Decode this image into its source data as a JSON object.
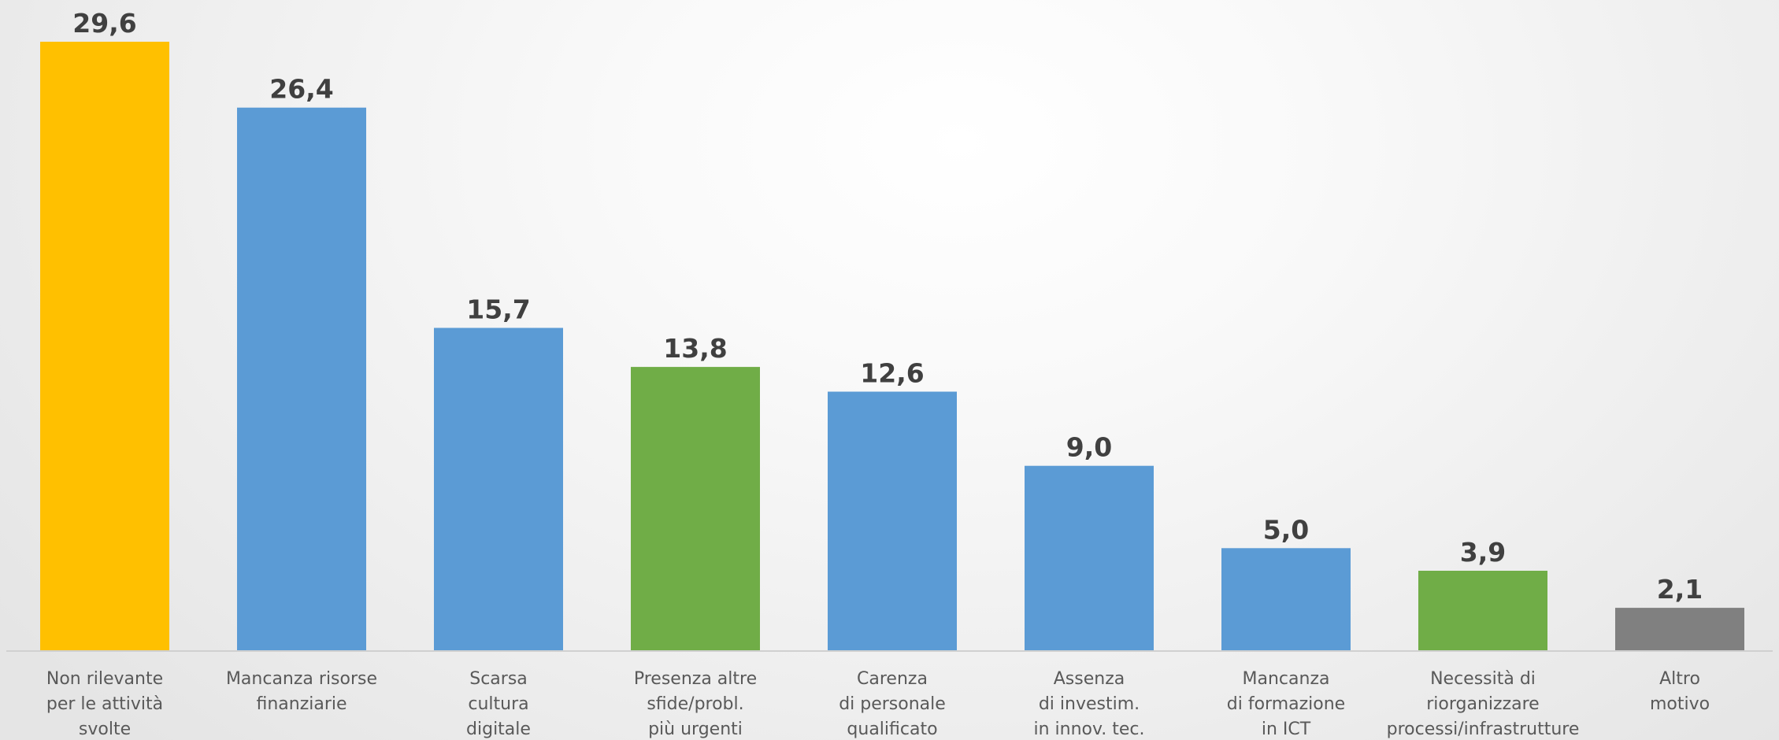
{
  "chart_data": {
    "type": "bar",
    "title": "",
    "xlabel": "",
    "ylabel": "",
    "ylim": [
      0,
      29.6
    ],
    "grid": false,
    "legend": "none",
    "categories": [
      [
        "Non rilevante",
        "per le attività",
        "svolte"
      ],
      [
        "Mancanza risorse",
        "finanziarie"
      ],
      [
        "Scarsa",
        "cultura",
        "digitale"
      ],
      [
        "Presenza altre",
        "sfide/probl.",
        "più urgenti"
      ],
      [
        "Carenza",
        "di personale",
        "qualificato"
      ],
      [
        "Assenza",
        "di investim.",
        "in innov. tec."
      ],
      [
        "Mancanza",
        "di formazione",
        "in ICT"
      ],
      [
        "Necessità di",
        "riorganizzare",
        "processi/infrastrutture"
      ],
      [
        "Altro",
        "motivo"
      ]
    ],
    "values": [
      29.6,
      26.4,
      15.7,
      13.8,
      12.6,
      9.0,
      5.0,
      3.9,
      2.1
    ],
    "value_labels": [
      "29,6",
      "26,4",
      "15,7",
      "13,8",
      "12,6",
      "9,0",
      "5,0",
      "3,9",
      "2,1"
    ],
    "colors": [
      "#FFC000",
      "#5B9BD5",
      "#5B9BD5",
      "#70AD47",
      "#5B9BD5",
      "#5B9BD5",
      "#5B9BD5",
      "#70AD47",
      "#808080"
    ]
  }
}
